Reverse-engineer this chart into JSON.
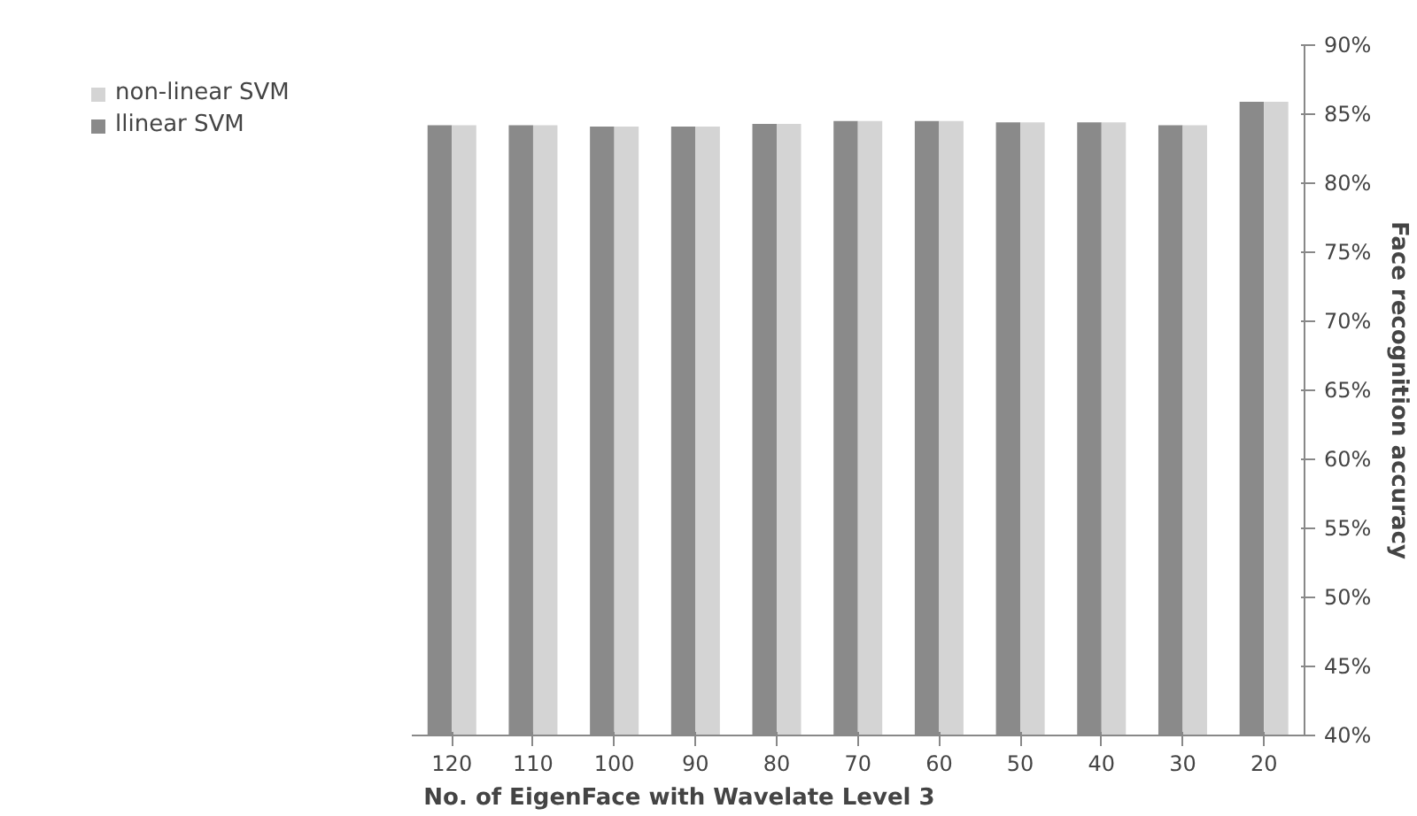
{
  "chart_data": {
    "type": "bar",
    "xlabel": "No. of EigenFace with Wavelate Level 3",
    "ylabel": "Face recognition accuracy",
    "categories": [
      "120",
      "110",
      "100",
      "90",
      "80",
      "70",
      "60",
      "50",
      "40",
      "30",
      "20"
    ],
    "series": [
      {
        "name": "llinear SVM",
        "color": "#8a8a8a",
        "values": [
          84.2,
          84.2,
          84.1,
          84.1,
          84.3,
          84.5,
          84.5,
          84.4,
          84.4,
          84.2,
          85.9
        ]
      },
      {
        "name": "non-linear SVM",
        "color": "#d4d4d4",
        "values": [
          84.2,
          84.2,
          84.1,
          84.1,
          84.3,
          84.5,
          84.5,
          84.4,
          84.4,
          84.2,
          85.9
        ]
      }
    ],
    "ylim": [
      40,
      90
    ],
    "yticks": [
      {
        "value": 40,
        "label": "40%"
      },
      {
        "value": 45,
        "label": "45%"
      },
      {
        "value": 50,
        "label": "50%"
      },
      {
        "value": 55,
        "label": "55%"
      },
      {
        "value": 60,
        "label": "60%"
      },
      {
        "value": 65,
        "label": "65%"
      },
      {
        "value": 70,
        "label": "70%"
      },
      {
        "value": 75,
        "label": "75%"
      },
      {
        "value": 80,
        "label": "80%"
      },
      {
        "value": 85,
        "label": "85%"
      },
      {
        "value": 90,
        "label": "90%"
      }
    ],
    "grid": false,
    "legend": "top left"
  }
}
